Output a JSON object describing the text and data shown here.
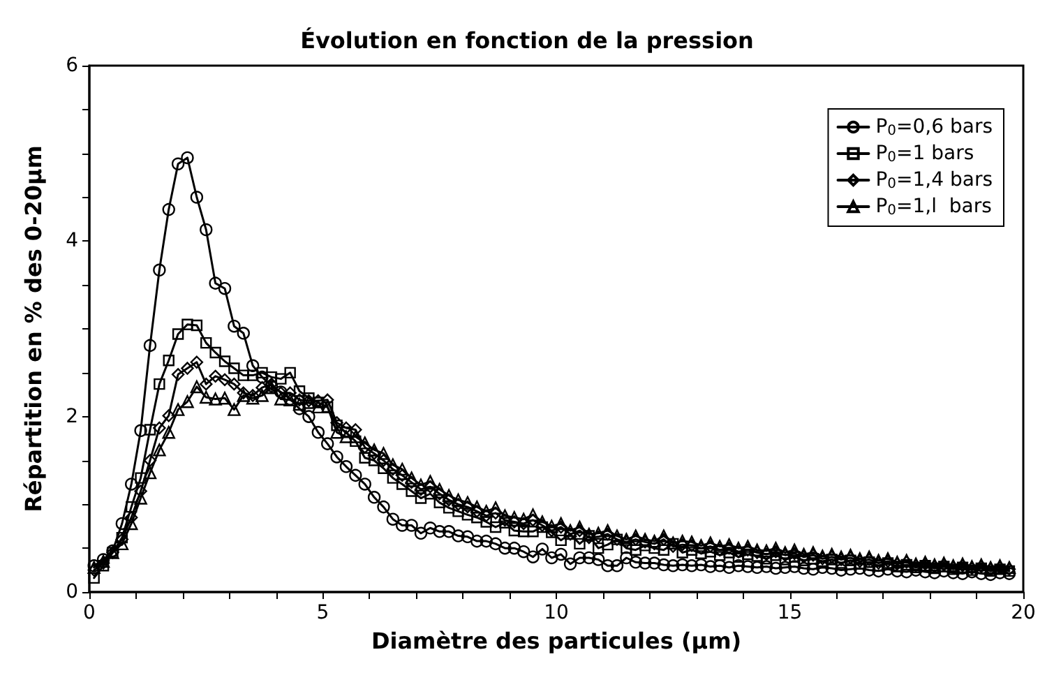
{
  "chart_data": {
    "type": "line",
    "title": "Évolution en fonction de la pression",
    "xlabel": "Diamètre des particules (µm)",
    "ylabel": "Répartition en % des 0-20µm",
    "x": [
      0.1,
      0.3,
      0.5,
      0.7,
      0.9,
      1.1,
      1.3,
      1.5,
      1.7,
      1.9,
      2.1,
      2.3,
      2.5,
      2.7,
      2.9,
      3.1,
      3.3,
      3.5,
      3.7,
      3.9,
      4.1,
      4.3,
      4.5,
      4.7,
      4.9,
      5.1,
      5.3,
      5.5,
      5.7,
      5.9,
      6.1,
      6.3,
      6.5,
      6.7,
      6.9,
      7.1,
      7.3,
      7.5,
      7.7,
      7.9,
      8.1,
      8.3,
      8.5,
      8.7,
      8.9,
      9.1,
      9.3,
      9.5,
      9.7,
      9.9,
      10.1,
      10.3,
      10.5,
      10.7,
      10.9,
      11.1,
      11.3,
      11.5,
      11.7,
      11.9,
      12.1,
      12.3,
      12.5,
      12.7,
      12.9,
      13.1,
      13.3,
      13.5,
      13.7,
      13.9,
      14.1,
      14.3,
      14.5,
      14.7,
      14.9,
      15.1,
      15.3,
      15.5,
      15.7,
      15.9,
      16.1,
      16.3,
      16.5,
      16.7,
      16.9,
      17.1,
      17.3,
      17.5,
      17.7,
      17.9,
      18.1,
      18.3,
      18.5,
      18.7,
      18.9,
      19.1,
      19.3,
      19.5,
      19.7
    ],
    "series": [
      {
        "name": "P$_{0}$=0,6 bars",
        "color": "#000000",
        "marker": "circle",
        "values": [
          0.3,
          0.37,
          0.47,
          0.78,
          1.23,
          1.84,
          2.81,
          3.67,
          4.36,
          4.88,
          4.95,
          4.5,
          4.13,
          3.52,
          3.46,
          3.03,
          2.95,
          2.58,
          2.45,
          2.35,
          2.28,
          2.2,
          2.09,
          2.0,
          1.82,
          1.69,
          1.54,
          1.43,
          1.33,
          1.23,
          1.08,
          0.97,
          0.83,
          0.76,
          0.76,
          0.67,
          0.73,
          0.69,
          0.69,
          0.64,
          0.63,
          0.58,
          0.58,
          0.55,
          0.5,
          0.5,
          0.46,
          0.4,
          0.49,
          0.39,
          0.43,
          0.32,
          0.39,
          0.39,
          0.37,
          0.3,
          0.3,
          0.39,
          0.34,
          0.33,
          0.33,
          0.31,
          0.3,
          0.31,
          0.3,
          0.31,
          0.29,
          0.3,
          0.28,
          0.3,
          0.29,
          0.28,
          0.29,
          0.27,
          0.28,
          0.29,
          0.27,
          0.26,
          0.28,
          0.27,
          0.25,
          0.26,
          0.27,
          0.25,
          0.24,
          0.26,
          0.24,
          0.23,
          0.25,
          0.23,
          0.22,
          0.24,
          0.22,
          0.21,
          0.23,
          0.21,
          0.2,
          0.22,
          0.21
        ]
      },
      {
        "name": "P$_{0}$=1 bars",
        "color": "#000000",
        "marker": "square",
        "values": [
          0.16,
          0.3,
          0.45,
          0.62,
          0.97,
          1.3,
          1.85,
          2.37,
          2.64,
          2.94,
          3.05,
          3.04,
          2.84,
          2.73,
          2.63,
          2.55,
          2.47,
          2.47,
          2.5,
          2.45,
          2.43,
          2.5,
          2.29,
          2.21,
          2.16,
          2.11,
          1.9,
          1.82,
          1.72,
          1.53,
          1.5,
          1.41,
          1.3,
          1.23,
          1.15,
          1.07,
          1.12,
          1.02,
          0.96,
          0.92,
          0.88,
          0.85,
          0.8,
          0.74,
          0.79,
          0.7,
          0.69,
          0.69,
          0.74,
          0.68,
          0.59,
          0.66,
          0.55,
          0.64,
          0.5,
          0.54,
          0.6,
          0.5,
          0.48,
          0.53,
          0.5,
          0.48,
          0.55,
          0.45,
          0.48,
          0.44,
          0.46,
          0.42,
          0.45,
          0.4,
          0.43,
          0.41,
          0.38,
          0.42,
          0.37,
          0.4,
          0.36,
          0.38,
          0.35,
          0.37,
          0.33,
          0.36,
          0.32,
          0.34,
          0.3,
          0.33,
          0.29,
          0.31,
          0.28,
          0.3,
          0.27,
          0.29,
          0.26,
          0.28,
          0.25,
          0.27,
          0.24,
          0.26,
          0.24
        ]
      },
      {
        "name": "P$_{0}$=1,4 bars",
        "color": "#000000",
        "marker": "diamond",
        "values": [
          0.25,
          0.33,
          0.45,
          0.6,
          0.85,
          1.15,
          1.5,
          1.87,
          2.01,
          2.48,
          2.55,
          2.62,
          2.37,
          2.46,
          2.42,
          2.37,
          2.27,
          2.24,
          2.33,
          2.37,
          2.27,
          2.27,
          2.19,
          2.18,
          2.18,
          2.19,
          1.93,
          1.87,
          1.85,
          1.65,
          1.58,
          1.5,
          1.4,
          1.33,
          1.25,
          1.17,
          1.2,
          1.12,
          1.05,
          1.0,
          0.97,
          0.92,
          0.87,
          0.9,
          0.82,
          0.8,
          0.78,
          0.82,
          0.76,
          0.7,
          0.74,
          0.66,
          0.7,
          0.62,
          0.63,
          0.66,
          0.6,
          0.57,
          0.6,
          0.57,
          0.55,
          0.6,
          0.52,
          0.54,
          0.53,
          0.5,
          0.52,
          0.48,
          0.5,
          0.46,
          0.48,
          0.45,
          0.43,
          0.46,
          0.42,
          0.44,
          0.4,
          0.42,
          0.38,
          0.4,
          0.37,
          0.39,
          0.35,
          0.37,
          0.33,
          0.35,
          0.32,
          0.34,
          0.3,
          0.32,
          0.29,
          0.31,
          0.28,
          0.3,
          0.27,
          0.29,
          0.26,
          0.28,
          0.26
        ]
      },
      {
        "name": "P$_{0}$=1,l  bars",
        "color": "#000000",
        "marker": "triangle",
        "values": [
          0.28,
          0.35,
          0.45,
          0.55,
          0.78,
          1.07,
          1.36,
          1.62,
          1.82,
          2.08,
          2.17,
          2.34,
          2.22,
          2.2,
          2.21,
          2.08,
          2.24,
          2.21,
          2.24,
          2.33,
          2.2,
          2.19,
          2.14,
          2.16,
          2.11,
          2.11,
          1.82,
          1.77,
          1.77,
          1.7,
          1.62,
          1.58,
          1.45,
          1.4,
          1.3,
          1.22,
          1.26,
          1.17,
          1.1,
          1.05,
          1.02,
          0.97,
          0.92,
          0.96,
          0.87,
          0.85,
          0.83,
          0.88,
          0.8,
          0.75,
          0.78,
          0.7,
          0.74,
          0.66,
          0.67,
          0.7,
          0.64,
          0.6,
          0.64,
          0.6,
          0.58,
          0.64,
          0.56,
          0.58,
          0.57,
          0.53,
          0.56,
          0.52,
          0.54,
          0.5,
          0.52,
          0.48,
          0.47,
          0.5,
          0.45,
          0.48,
          0.43,
          0.45,
          0.41,
          0.43,
          0.4,
          0.42,
          0.38,
          0.4,
          0.36,
          0.38,
          0.34,
          0.36,
          0.32,
          0.34,
          0.31,
          0.33,
          0.3,
          0.32,
          0.29,
          0.31,
          0.28,
          0.3,
          0.28
        ]
      }
    ],
    "xlim": [
      0,
      20
    ],
    "xticks": [
      0,
      {
        "value": 1,
        "label": null
      },
      {
        "value": 2,
        "label": null
      },
      {
        "value": 3,
        "label": null
      },
      {
        "value": 4,
        "label": null
      },
      5,
      {
        "value": 6,
        "label": null
      },
      {
        "value": 7,
        "label": null
      },
      {
        "value": 8,
        "label": null
      },
      {
        "value": 9,
        "label": null
      },
      10,
      {
        "value": 11,
        "label": null
      },
      {
        "value": 12,
        "label": null
      },
      {
        "value": 13,
        "label": null
      },
      {
        "value": 14,
        "label": null
      },
      15,
      {
        "value": 16,
        "label": null
      },
      {
        "value": 17,
        "label": null
      },
      {
        "value": 18,
        "label": null
      },
      {
        "value": 19,
        "label": null
      },
      20
    ],
    "ylim": [
      0,
      6
    ],
    "yticks": [
      0,
      {
        "value": 0.5,
        "label": null
      },
      {
        "value": 1,
        "label": null
      },
      {
        "value": 1.5,
        "label": null
      },
      2,
      {
        "value": 2.5,
        "label": null
      },
      {
        "value": 3,
        "label": null
      },
      {
        "value": 3.5,
        "label": null
      },
      4,
      {
        "value": 4.5,
        "label": null
      },
      {
        "value": 5,
        "label": null
      },
      {
        "value": 5.5,
        "label": null
      },
      6
    ],
    "grid": false,
    "legend": "top right",
    "line_style": "solid"
  }
}
